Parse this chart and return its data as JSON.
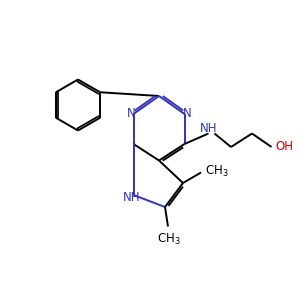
{
  "background_color": "#ffffff",
  "bond_color": "#000000",
  "nitrogen_color": "#3333bb",
  "oxygen_color": "#cc0000",
  "line_width": 1.4,
  "font_size": 8.5,
  "fig_size": [
    3.0,
    3.0
  ],
  "dpi": 100,
  "xlim": [
    0,
    10
  ],
  "ylim": [
    0,
    10
  ]
}
